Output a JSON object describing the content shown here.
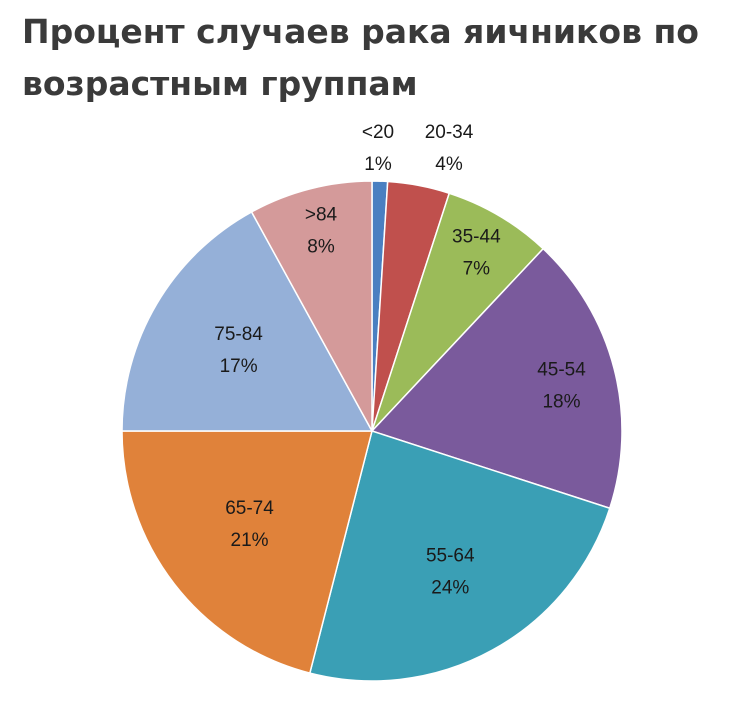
{
  "chart_data": {
    "type": "pie",
    "title": "Процент случаев рака яичников по возрастным группам",
    "start_angle_deg": 0,
    "direction": "clockwise",
    "slices": [
      {
        "label": "<20",
        "value": 1,
        "value_label": "1%",
        "color": "#4a7fc1"
      },
      {
        "label": "20-34",
        "value": 4,
        "value_label": "4%",
        "color": "#c0504d"
      },
      {
        "label": "35-44",
        "value": 7,
        "value_label": "7%",
        "color": "#9bbb59"
      },
      {
        "label": "45-54",
        "value": 18,
        "value_label": "18%",
        "color": "#7a5a9c"
      },
      {
        "label": "55-64",
        "value": 24,
        "value_label": "24%",
        "color": "#3a9fb5"
      },
      {
        "label": "65-74",
        "value": 21,
        "value_label": "21%",
        "color": "#e0823a"
      },
      {
        "label": "75-84",
        "value": 17,
        "value_label": "17%",
        "color": "#95b0d8"
      },
      {
        "label": ">84",
        "value": 8,
        "value_label": "8%",
        "color": "#d49a9a"
      }
    ],
    "legend": "none"
  }
}
